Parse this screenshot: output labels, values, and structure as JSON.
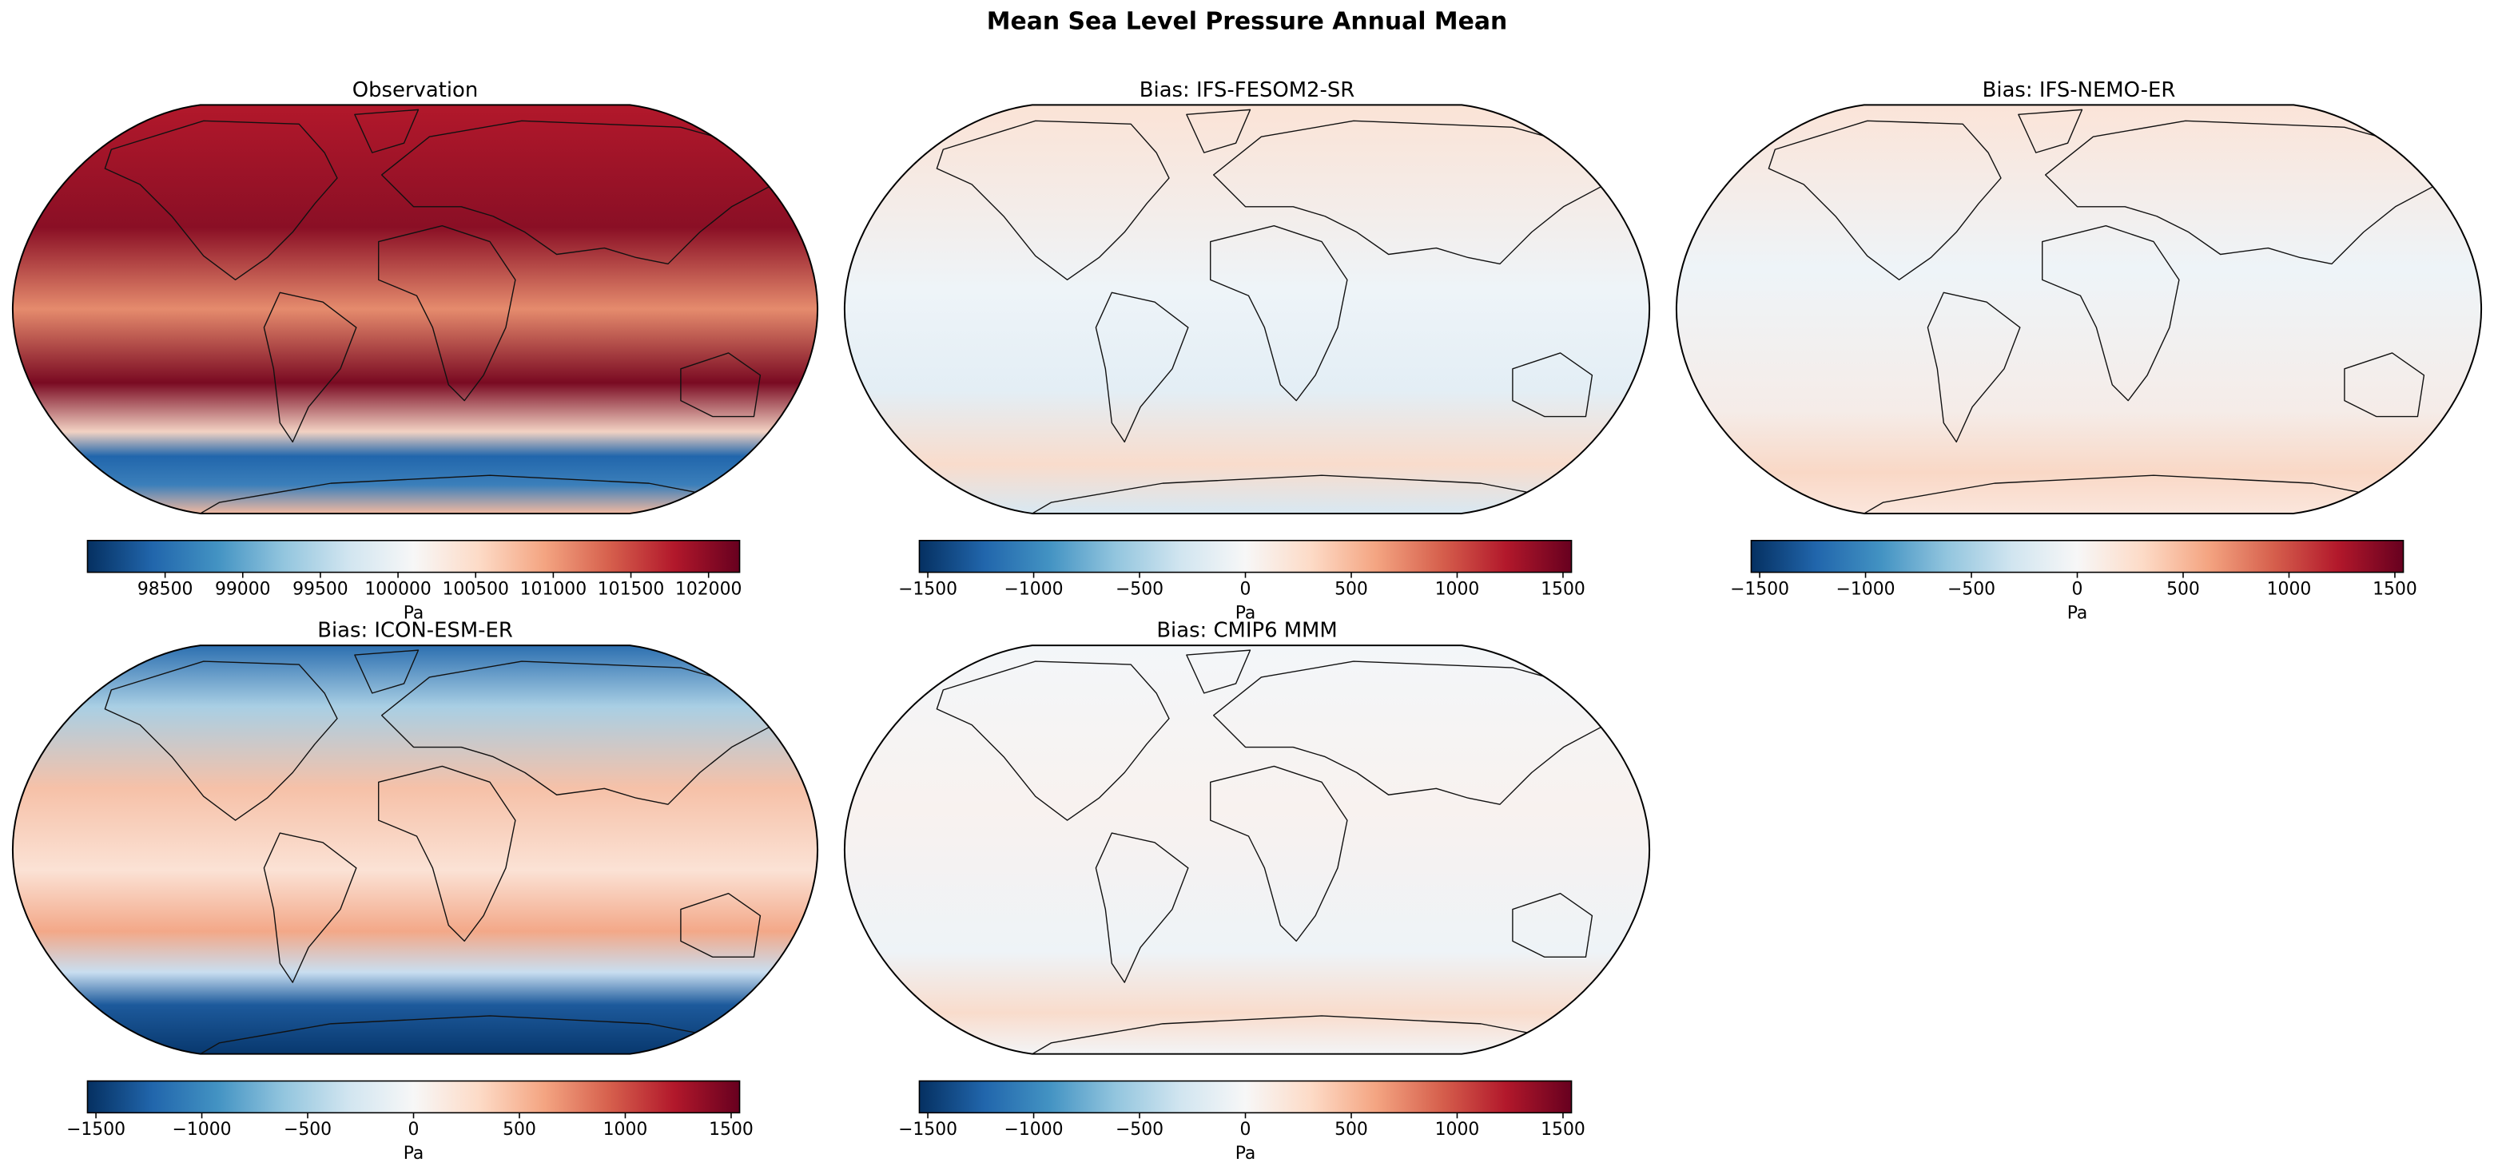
{
  "title": "Mean Sea Level Pressure Annual Mean",
  "colormap": [
    "#053061",
    "#2166ac",
    "#4393c3",
    "#92c5de",
    "#d1e5f0",
    "#f7f7f7",
    "#fddbc7",
    "#f4a582",
    "#d6604d",
    "#b2182b",
    "#67001f"
  ],
  "panels": [
    {
      "title": "Observation",
      "colorbar": {
        "label": "Pa",
        "lim": [
          98000,
          102200
        ],
        "ticks": [
          98500,
          99000,
          99500,
          100000,
          100500,
          101000,
          101500,
          102000
        ]
      }
    },
    {
      "title": "Bias: IFS-FESOM2-SR",
      "colorbar": {
        "label": "Pa",
        "lim": [
          -1540,
          1540
        ],
        "ticks": [
          {
            "value": -1500,
            "label": "−1500"
          },
          {
            "value": -1000,
            "label": "−1000"
          },
          {
            "value": -500,
            "label": "−500"
          },
          0,
          500,
          1000,
          1500
        ]
      }
    },
    {
      "title": "Bias: IFS-NEMO-ER",
      "colorbar": {
        "label": "Pa",
        "lim": [
          -1540,
          1540
        ],
        "ticks": [
          {
            "value": -1500,
            "label": "−1500"
          },
          {
            "value": -1000,
            "label": "−1000"
          },
          {
            "value": -500,
            "label": "−500"
          },
          0,
          500,
          1000,
          1500
        ]
      }
    },
    {
      "title": "Bias: ICON-ESM-ER",
      "colorbar": {
        "label": "Pa",
        "lim": [
          -1540,
          1540
        ],
        "ticks": [
          {
            "value": -1500,
            "label": "−1500"
          },
          {
            "value": -1000,
            "label": "−1000"
          },
          {
            "value": -500,
            "label": "−500"
          },
          0,
          500,
          1000,
          1500
        ]
      }
    },
    {
      "title": "Bias: CMIP6 MMM",
      "colorbar": {
        "label": "Pa",
        "lim": [
          -1540,
          1540
        ],
        "ticks": [
          {
            "value": -1500,
            "label": "−1500"
          },
          {
            "value": -1000,
            "label": "−1000"
          },
          {
            "value": -500,
            "label": "−500"
          },
          0,
          500,
          1000,
          1500
        ]
      }
    }
  ]
}
